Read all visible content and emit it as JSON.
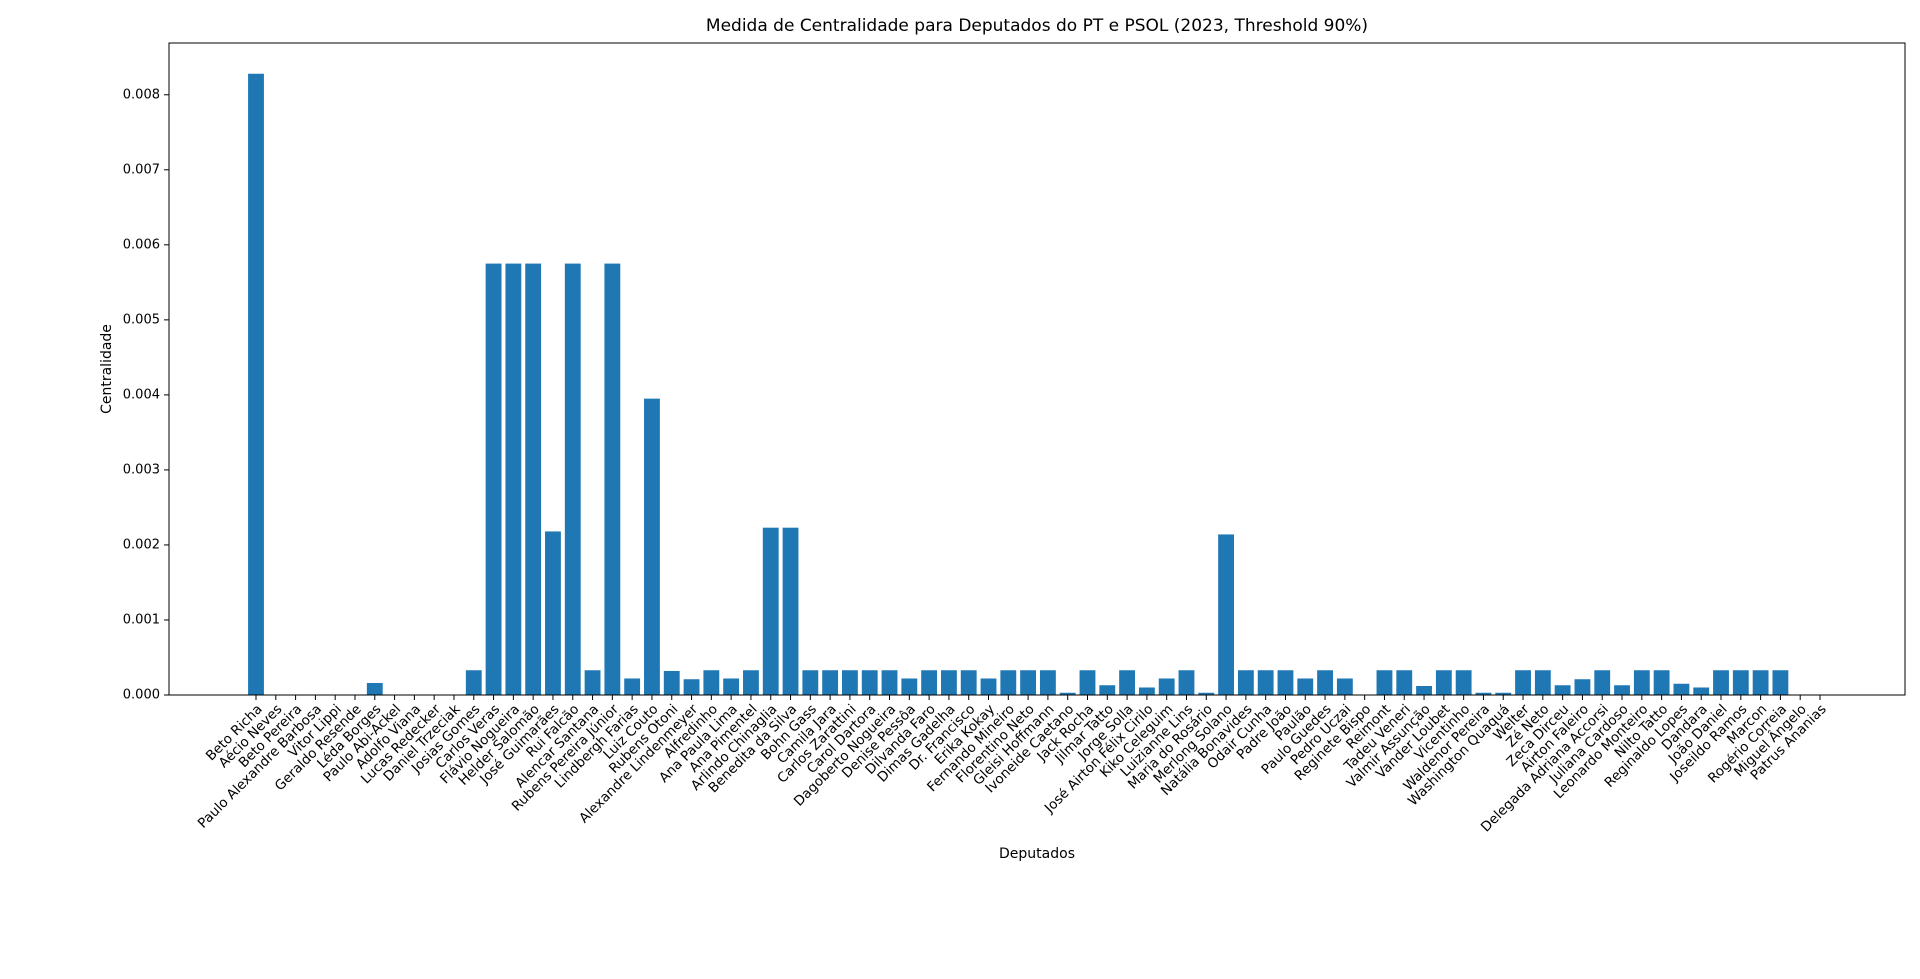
{
  "chart_data": {
    "type": "bar",
    "title": "Medida de Centralidade para Deputados do PT e PSOL (2023, Threshold 90%)",
    "x_label": "Deputados",
    "y_label": "Centralidade",
    "color": "#1f77b4",
    "categories": [
      "Beto Richa",
      "Aécio Neves",
      "Beto Pereira",
      "Paulo Alexandre Barbosa",
      "Vitor Lippi",
      "Geraldo Resende",
      "Léda Borges",
      "Paulo Abi-Ackel",
      "Adolfo Viana",
      "Lucas Redecker",
      "Daniel Trzeciak",
      "Josias Gomes",
      "Carlos Veras",
      "Flávio Nogueira",
      "Helder Salomão",
      "José Guimarães",
      "Rui Falcão",
      "Alencar Santana",
      "Rubens Pereira Júnior",
      "Lindbergh Farias",
      "Luiz Couto",
      "Rubens Otoni",
      "Alexandre Lindenmeyer",
      "Alfredinho",
      "Ana Paula Lima",
      "Ana Pimentel",
      "Arlindo Chinaglia",
      "Benedita da Silva",
      "Bohn Gass",
      "Camila Jara",
      "Carlos Zarattini",
      "Carol Dartora",
      "Dagoberto Nogueira",
      "Denise Pessôa",
      "Dilvanda Faro",
      "Dimas Gadelha",
      "Dr. Francisco",
      "Erika Kokay",
      "Fernando Mineiro",
      "Florentino Neto",
      "Gleisi Hoffmann",
      "Ivoneide Caetano",
      "Jack Rocha",
      "Jilmar Tatto",
      "Jorge Solla",
      "José Airton Félix Cirilo",
      "Kiko Celeguim",
      "Luizianne Lins",
      "Maria do Rosário",
      "Merlong Solano",
      "Natália Bonavides",
      "Odair Cunha",
      "Padre João",
      "Paulão",
      "Paulo Guedes",
      "Pedro Uczai",
      "Reginete Bispo",
      "Reimont",
      "Tadeu Veneri",
      "Valmir Assunção",
      "Vander Loubet",
      "Vicentinho",
      "Waldenor Pereira",
      "Washington Quaquá",
      "Welter",
      "Zé Neto",
      "Zeca Dirceu",
      "Airton Faleiro",
      "Delegada Adriana Accorsi",
      "Juliana Cardoso",
      "Leonardo Monteiro",
      "Nilto Tatto",
      "Reginaldo Lopes",
      "Dandara",
      "João Daniel",
      "Joseildo Ramos",
      "Marcon",
      "Rogério Correia",
      "Miguel Ângelo",
      "Patrus Ananias"
    ],
    "values": [
      0.00828,
      0,
      0,
      0,
      0,
      0,
      0.00016,
      0,
      0,
      0,
      0,
      0.00033,
      0.00575,
      0.00575,
      0.00575,
      0.00218,
      0.00575,
      0.00033,
      0.00575,
      0.00022,
      0.00395,
      0.00032,
      0.00021,
      0.00033,
      0.00022,
      0.00033,
      0.00223,
      0.00223,
      0.00033,
      0.00033,
      0.00033,
      0.00033,
      0.00033,
      0.00022,
      0.00033,
      0.00033,
      0.00033,
      0.00022,
      0.00033,
      0.00033,
      0.00033,
      3e-05,
      0.00033,
      0.00013,
      0.00033,
      0.0001,
      0.00022,
      0.00033,
      3e-05,
      0.00214,
      0.00033,
      0.00033,
      0.00033,
      0.00022,
      0.00033,
      0.00022,
      0,
      0.00033,
      0.00033,
      0.00012,
      0.00033,
      0.00033,
      3e-05,
      3e-05,
      0.00033,
      0.00033,
      0.00013,
      0.00021,
      0.00033,
      0.00013,
      0.00033,
      0.00033,
      0.00015,
      0.0001,
      0.00033,
      0.00033,
      0.00033,
      0.00033,
      0,
      0
    ],
    "ylim": [
      0,
      0.00869
    ],
    "yticks": [
      {
        "value": 0,
        "label": "0.000"
      },
      0.001,
      0.002,
      0.003,
      0.004,
      0.005,
      0.006,
      0.007,
      0.008
    ]
  }
}
